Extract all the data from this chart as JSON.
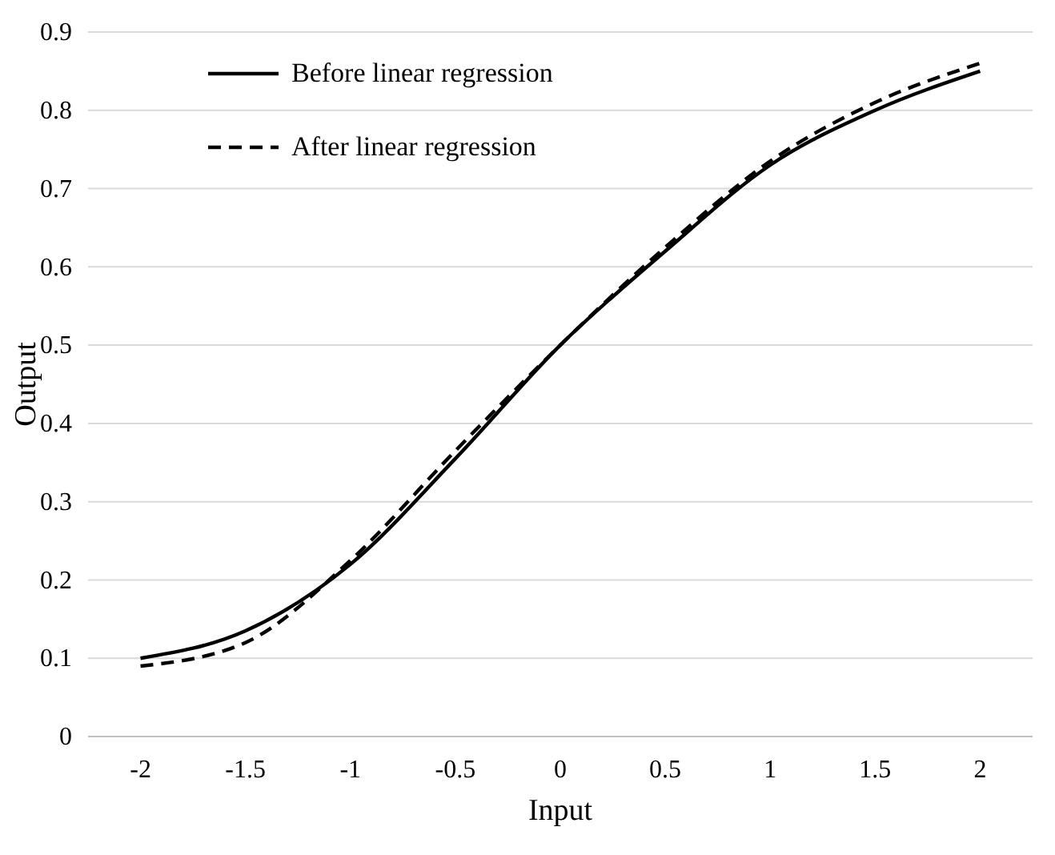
{
  "chart_data": {
    "type": "line",
    "xlabel": "Input",
    "ylabel": "Output",
    "categories": [
      "-2",
      "-1.5",
      "-1",
      "-0.5",
      "0",
      "0.5",
      "1",
      "1.5",
      "2"
    ],
    "series": [
      {
        "name": "Before linear regression",
        "color": "#000000",
        "line_style": "solid",
        "values": [
          0.1,
          0.135,
          0.22,
          0.355,
          0.5,
          0.62,
          0.73,
          0.8,
          0.85
        ]
      },
      {
        "name": "After linear regression",
        "color": "#000000",
        "line_style": "dashed",
        "values": [
          0.09,
          0.12,
          0.225,
          0.365,
          0.5,
          0.625,
          0.735,
          0.81,
          0.86
        ]
      }
    ],
    "ylim": [
      0,
      0.9
    ],
    "yticks": [
      0,
      0.1,
      0.2,
      0.3,
      0.4,
      0.5,
      0.6,
      0.7,
      0.8,
      0.9
    ],
    "grid": "y",
    "legend": "top left",
    "marker": "none"
  }
}
